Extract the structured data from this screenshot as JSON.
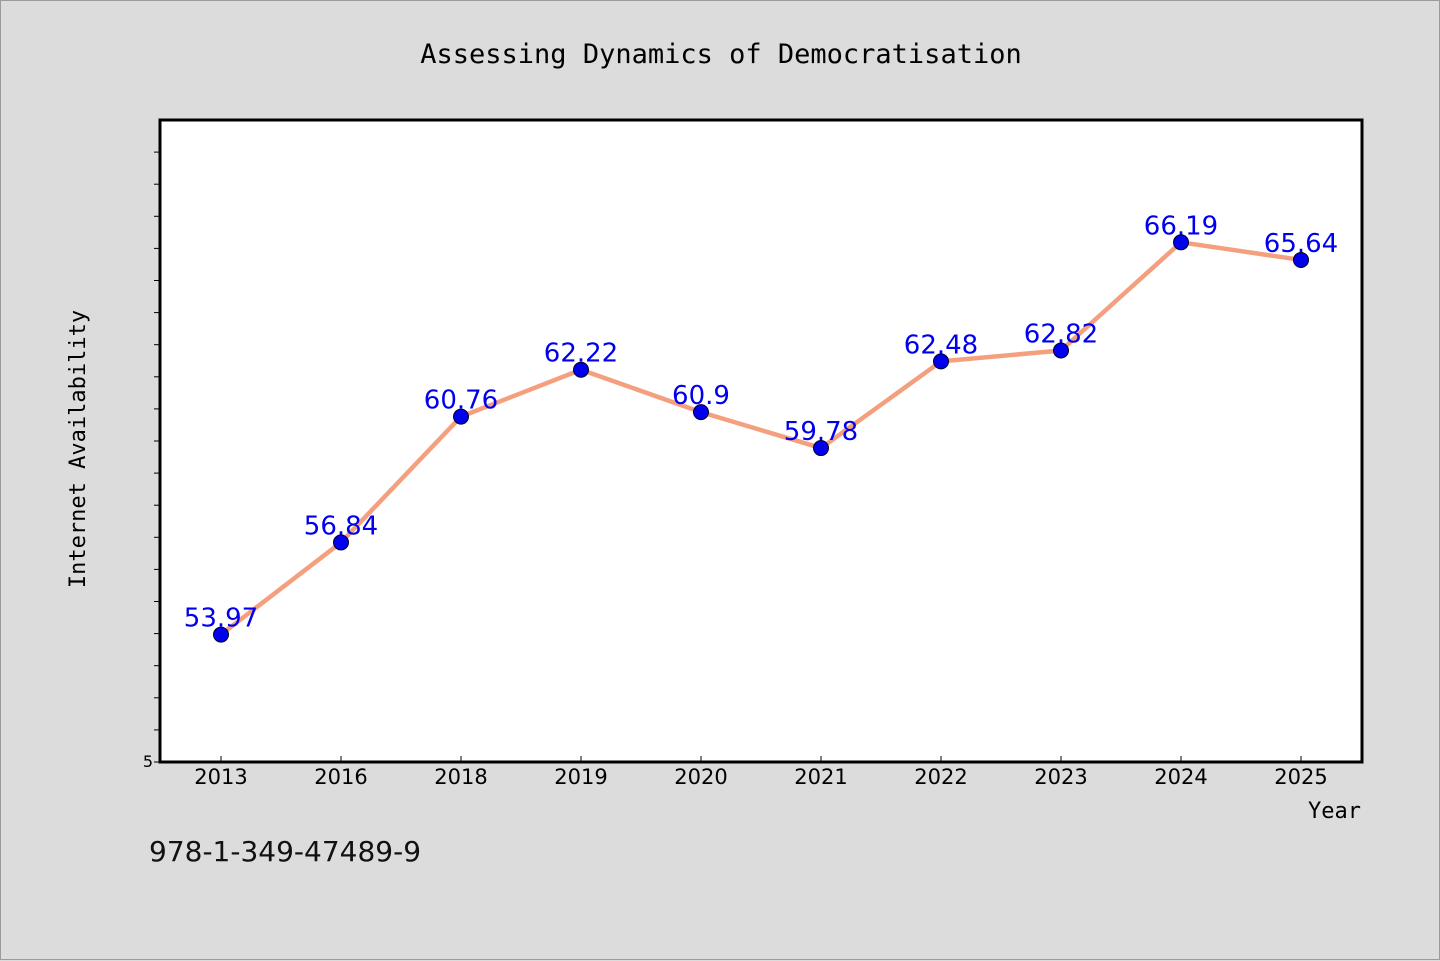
{
  "chart_data": {
    "type": "line",
    "title": "Assessing Dynamics of Democratisation",
    "xlabel": "Year",
    "ylabel": "Internet Availability",
    "categories": [
      "2013",
      "2016",
      "2018",
      "2019",
      "2020",
      "2021",
      "2022",
      "2023",
      "2024",
      "2025"
    ],
    "series": [
      {
        "values": [
          53.97,
          56.84,
          60.76,
          62.22,
          60.9,
          59.78,
          62.48,
          62.82,
          66.19,
          65.64
        ],
        "labels": [
          "53.97",
          "56.84",
          "60.76",
          "62.22",
          "60.9",
          "59.78",
          "62.48",
          "62.82",
          "66.19",
          "65.64"
        ],
        "line_color": "#f4a07f",
        "marker_color": "#0000ee",
        "label_color": "#0000ee"
      }
    ],
    "ylim": [
      50,
      70
    ],
    "y_tick_labels": [
      "5"
    ],
    "grid": false,
    "legend": false
  },
  "footer": {
    "isbn": "978-1-349-47489-9"
  },
  "colors": {
    "background": "#dcdcdc",
    "plot_area": "#ffffff"
  }
}
